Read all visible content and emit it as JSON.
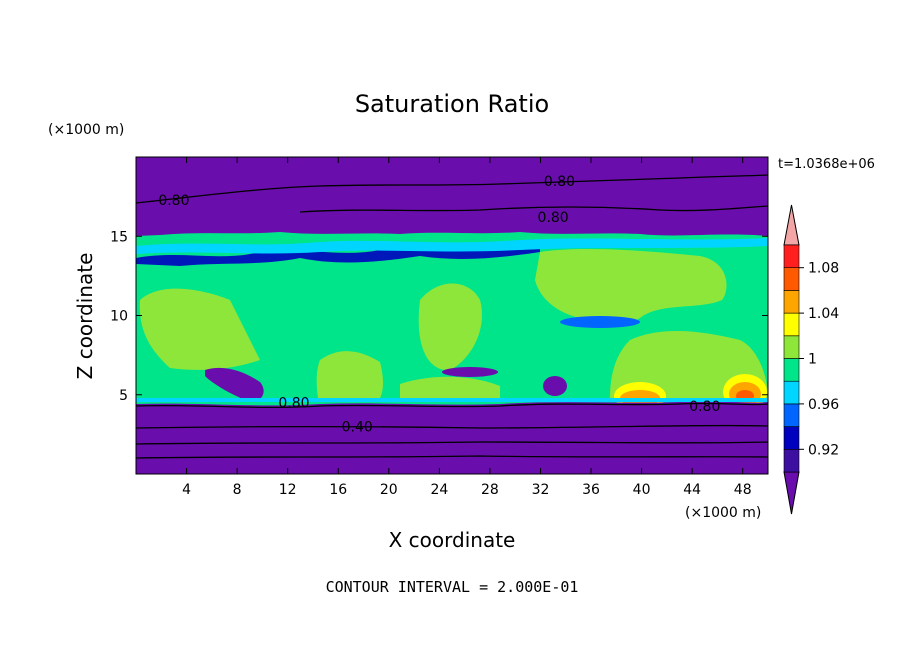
{
  "chart_data": {
    "type": "heatmap",
    "title": "Saturation Ratio",
    "xlabel": "X coordinate",
    "ylabel": "Z coordinate",
    "x_unit": "(×1000 m)",
    "y_unit": "(×1000 m)",
    "time_label": "t=1.0368e+06",
    "footer": "CONTOUR INTERVAL = 2.000E-01",
    "xlim": [
      0,
      50
    ],
    "ylim": [
      0,
      20
    ],
    "x_ticks": [
      4,
      8,
      12,
      16,
      20,
      24,
      28,
      32,
      36,
      40,
      44,
      48
    ],
    "y_ticks": [
      5,
      10,
      15
    ],
    "colorbar": {
      "colors": [
        "#6a0dad",
        "#3d0fa0",
        "#0000bf",
        "#0066ff",
        "#00d5ff",
        "#00e58a",
        "#8fe63a",
        "#ffff00",
        "#ffa500",
        "#ff5a00",
        "#ff1f1f",
        "#f4a6a6"
      ],
      "tick_labels": [
        "0.92",
        "0.96",
        "1",
        "1.04",
        "1.08"
      ]
    },
    "contour_labels": [
      {
        "text": "0.80",
        "x": 3,
        "z": 17.3
      },
      {
        "text": "0.80",
        "x": 33.5,
        "z": 18.5
      },
      {
        "text": "0.80",
        "x": 33,
        "z": 16.2
      },
      {
        "text": "0.80",
        "x": 12.5,
        "z": 4.5
      },
      {
        "text": "0.40",
        "x": 17.5,
        "z": 3
      },
      {
        "text": "0.80",
        "x": 45,
        "z": 4.3
      }
    ]
  }
}
